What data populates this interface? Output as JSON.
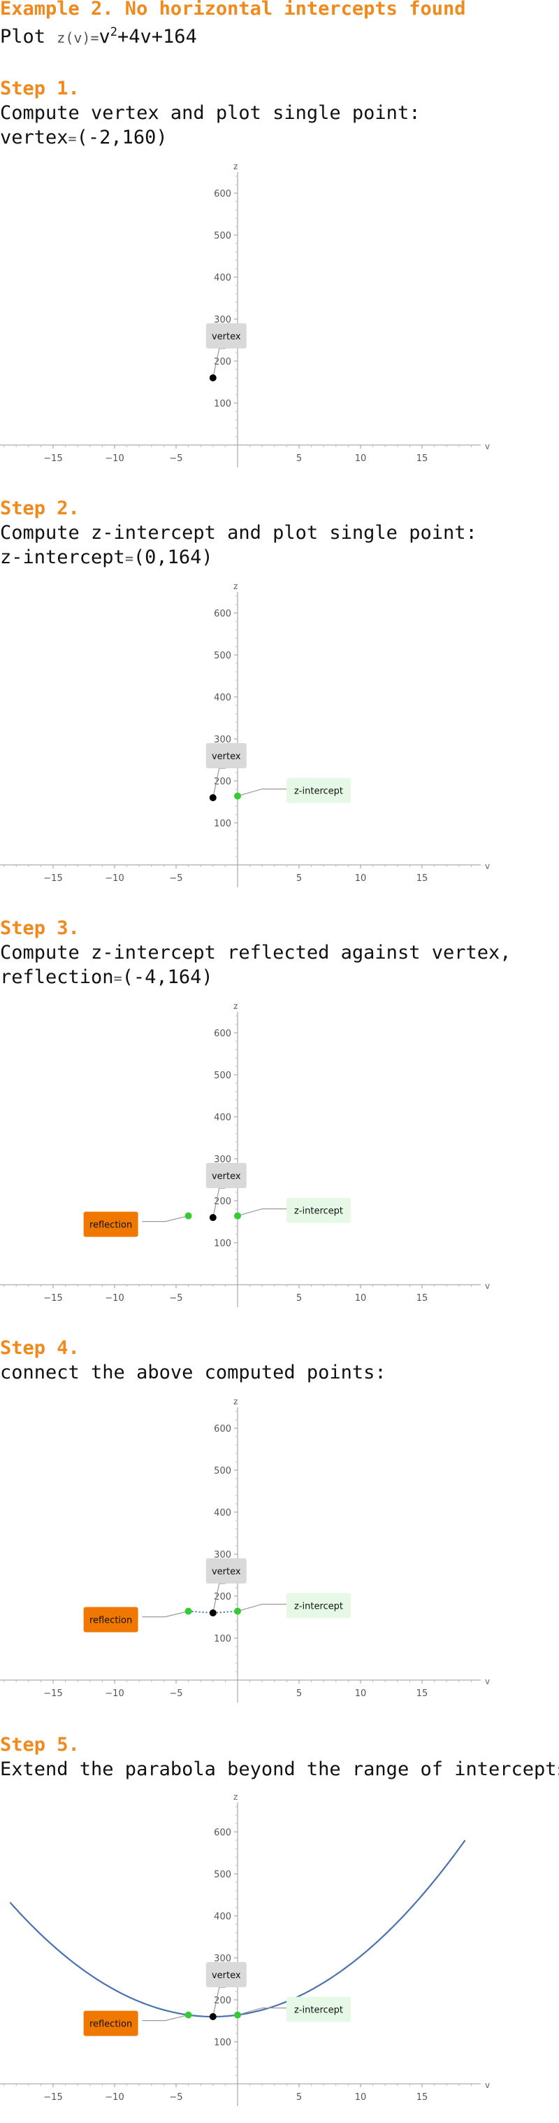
{
  "title": "Example 2. No horizontal intercepts found",
  "plot_line": {
    "prefix": "Plot",
    "lhs": "z(v)=",
    "v": "v",
    "exp": "2",
    "rest": "+4v+164"
  },
  "steps": [
    {
      "heading": "Step 1.",
      "lines": [
        "Compute vertex and plot single point:"
      ],
      "result": {
        "label": "vertex",
        "value": "(-2,160)"
      }
    },
    {
      "heading": "Step 2.",
      "lines": [
        "Compute z-intercept and plot single point:"
      ],
      "result": {
        "label": "z-intercept",
        "value": "(0,164)"
      }
    },
    {
      "heading": "Step 3.",
      "lines": [
        "Compute z-intercept reflected against vertex,"
      ],
      "result": {
        "label": "reflection",
        "value": "(-4,164)"
      }
    },
    {
      "heading": "Step 4.",
      "lines": [
        "connect the above computed points:"
      ],
      "result": null
    },
    {
      "heading": "Step 5.",
      "lines": [
        "Extend the parabola beyond the range of intercepts"
      ],
      "result": null
    }
  ],
  "colors": {
    "heading": "#f08a1c",
    "vertex_point": "#000000",
    "green_point": "#33cc33",
    "curve": "#4a72b0",
    "vertex_label_bg": "#d9d9d9",
    "intercept_label_bg": "#e6f9e6",
    "reflection_label_bg": "#f07800"
  },
  "chart_data": [
    {
      "type": "scatter",
      "xlabel": "v",
      "ylabel": "z",
      "xlim": [
        -19,
        19
      ],
      "ylim": [
        -20,
        680
      ],
      "x_ticks": [
        -15,
        -10,
        -5,
        5,
        10,
        15
      ],
      "y_ticks": [
        100,
        200,
        300,
        400,
        500,
        600
      ],
      "points": [
        {
          "x": -2,
          "y": 160,
          "role": "vertex"
        }
      ],
      "labels": [
        {
          "text": "vertex",
          "kind": "vertex",
          "for": "vertex"
        }
      ],
      "segments": [],
      "curve": null
    },
    {
      "type": "scatter",
      "xlabel": "v",
      "ylabel": "z",
      "xlim": [
        -19,
        19
      ],
      "ylim": [
        -20,
        680
      ],
      "x_ticks": [
        -15,
        -10,
        -5,
        5,
        10,
        15
      ],
      "y_ticks": [
        100,
        200,
        300,
        400,
        500,
        600
      ],
      "points": [
        {
          "x": -2,
          "y": 160,
          "role": "vertex"
        },
        {
          "x": 0,
          "y": 164,
          "role": "z-intercept"
        }
      ],
      "labels": [
        {
          "text": "vertex",
          "kind": "vertex",
          "for": "vertex"
        },
        {
          "text": "z-intercept",
          "kind": "intercept",
          "for": "z-intercept"
        }
      ],
      "segments": [],
      "curve": null
    },
    {
      "type": "scatter",
      "xlabel": "v",
      "ylabel": "z",
      "xlim": [
        -19,
        19
      ],
      "ylim": [
        -20,
        680
      ],
      "x_ticks": [
        -15,
        -10,
        -5,
        5,
        10,
        15
      ],
      "y_ticks": [
        100,
        200,
        300,
        400,
        500,
        600
      ],
      "points": [
        {
          "x": -2,
          "y": 160,
          "role": "vertex"
        },
        {
          "x": 0,
          "y": 164,
          "role": "z-intercept"
        },
        {
          "x": -4,
          "y": 164,
          "role": "reflection"
        }
      ],
      "labels": [
        {
          "text": "vertex",
          "kind": "vertex",
          "for": "vertex"
        },
        {
          "text": "z-intercept",
          "kind": "intercept",
          "for": "z-intercept"
        },
        {
          "text": "reflection",
          "kind": "reflection",
          "for": "reflection"
        }
      ],
      "segments": [],
      "curve": null
    },
    {
      "type": "line",
      "xlabel": "v",
      "ylabel": "z",
      "xlim": [
        -19,
        19
      ],
      "ylim": [
        -20,
        680
      ],
      "x_ticks": [
        -15,
        -10,
        -5,
        5,
        10,
        15
      ],
      "y_ticks": [
        100,
        200,
        300,
        400,
        500,
        600
      ],
      "points": [
        {
          "x": -2,
          "y": 160,
          "role": "vertex"
        },
        {
          "x": 0,
          "y": 164,
          "role": "z-intercept"
        },
        {
          "x": -4,
          "y": 164,
          "role": "reflection"
        }
      ],
      "labels": [
        {
          "text": "vertex",
          "kind": "vertex",
          "for": "vertex"
        },
        {
          "text": "z-intercept",
          "kind": "intercept",
          "for": "z-intercept"
        },
        {
          "text": "reflection",
          "kind": "reflection",
          "for": "reflection"
        }
      ],
      "segments": [
        {
          "from": [
            -4,
            164
          ],
          "to": [
            -2,
            160
          ]
        },
        {
          "from": [
            -2,
            160
          ],
          "to": [
            0,
            164
          ]
        }
      ],
      "curve": null
    },
    {
      "type": "line",
      "xlabel": "v",
      "ylabel": "z",
      "xlim": [
        -19,
        19
      ],
      "ylim": [
        -20,
        680
      ],
      "x_ticks": [
        -15,
        -10,
        -5,
        5,
        10,
        15
      ],
      "y_ticks": [
        100,
        200,
        300,
        400,
        500,
        600
      ],
      "points": [
        {
          "x": -2,
          "y": 160,
          "role": "vertex"
        },
        {
          "x": 0,
          "y": 164,
          "role": "z-intercept"
        },
        {
          "x": -4,
          "y": 164,
          "role": "reflection"
        }
      ],
      "labels": [
        {
          "text": "vertex",
          "kind": "vertex",
          "for": "vertex"
        },
        {
          "text": "z-intercept",
          "kind": "intercept",
          "for": "z-intercept"
        },
        {
          "text": "reflection",
          "kind": "reflection",
          "for": "reflection"
        }
      ],
      "segments": [],
      "curve": {
        "a": 1,
        "b": 4,
        "c": 164,
        "x_range": [
          -18.5,
          18.5
        ]
      }
    }
  ]
}
